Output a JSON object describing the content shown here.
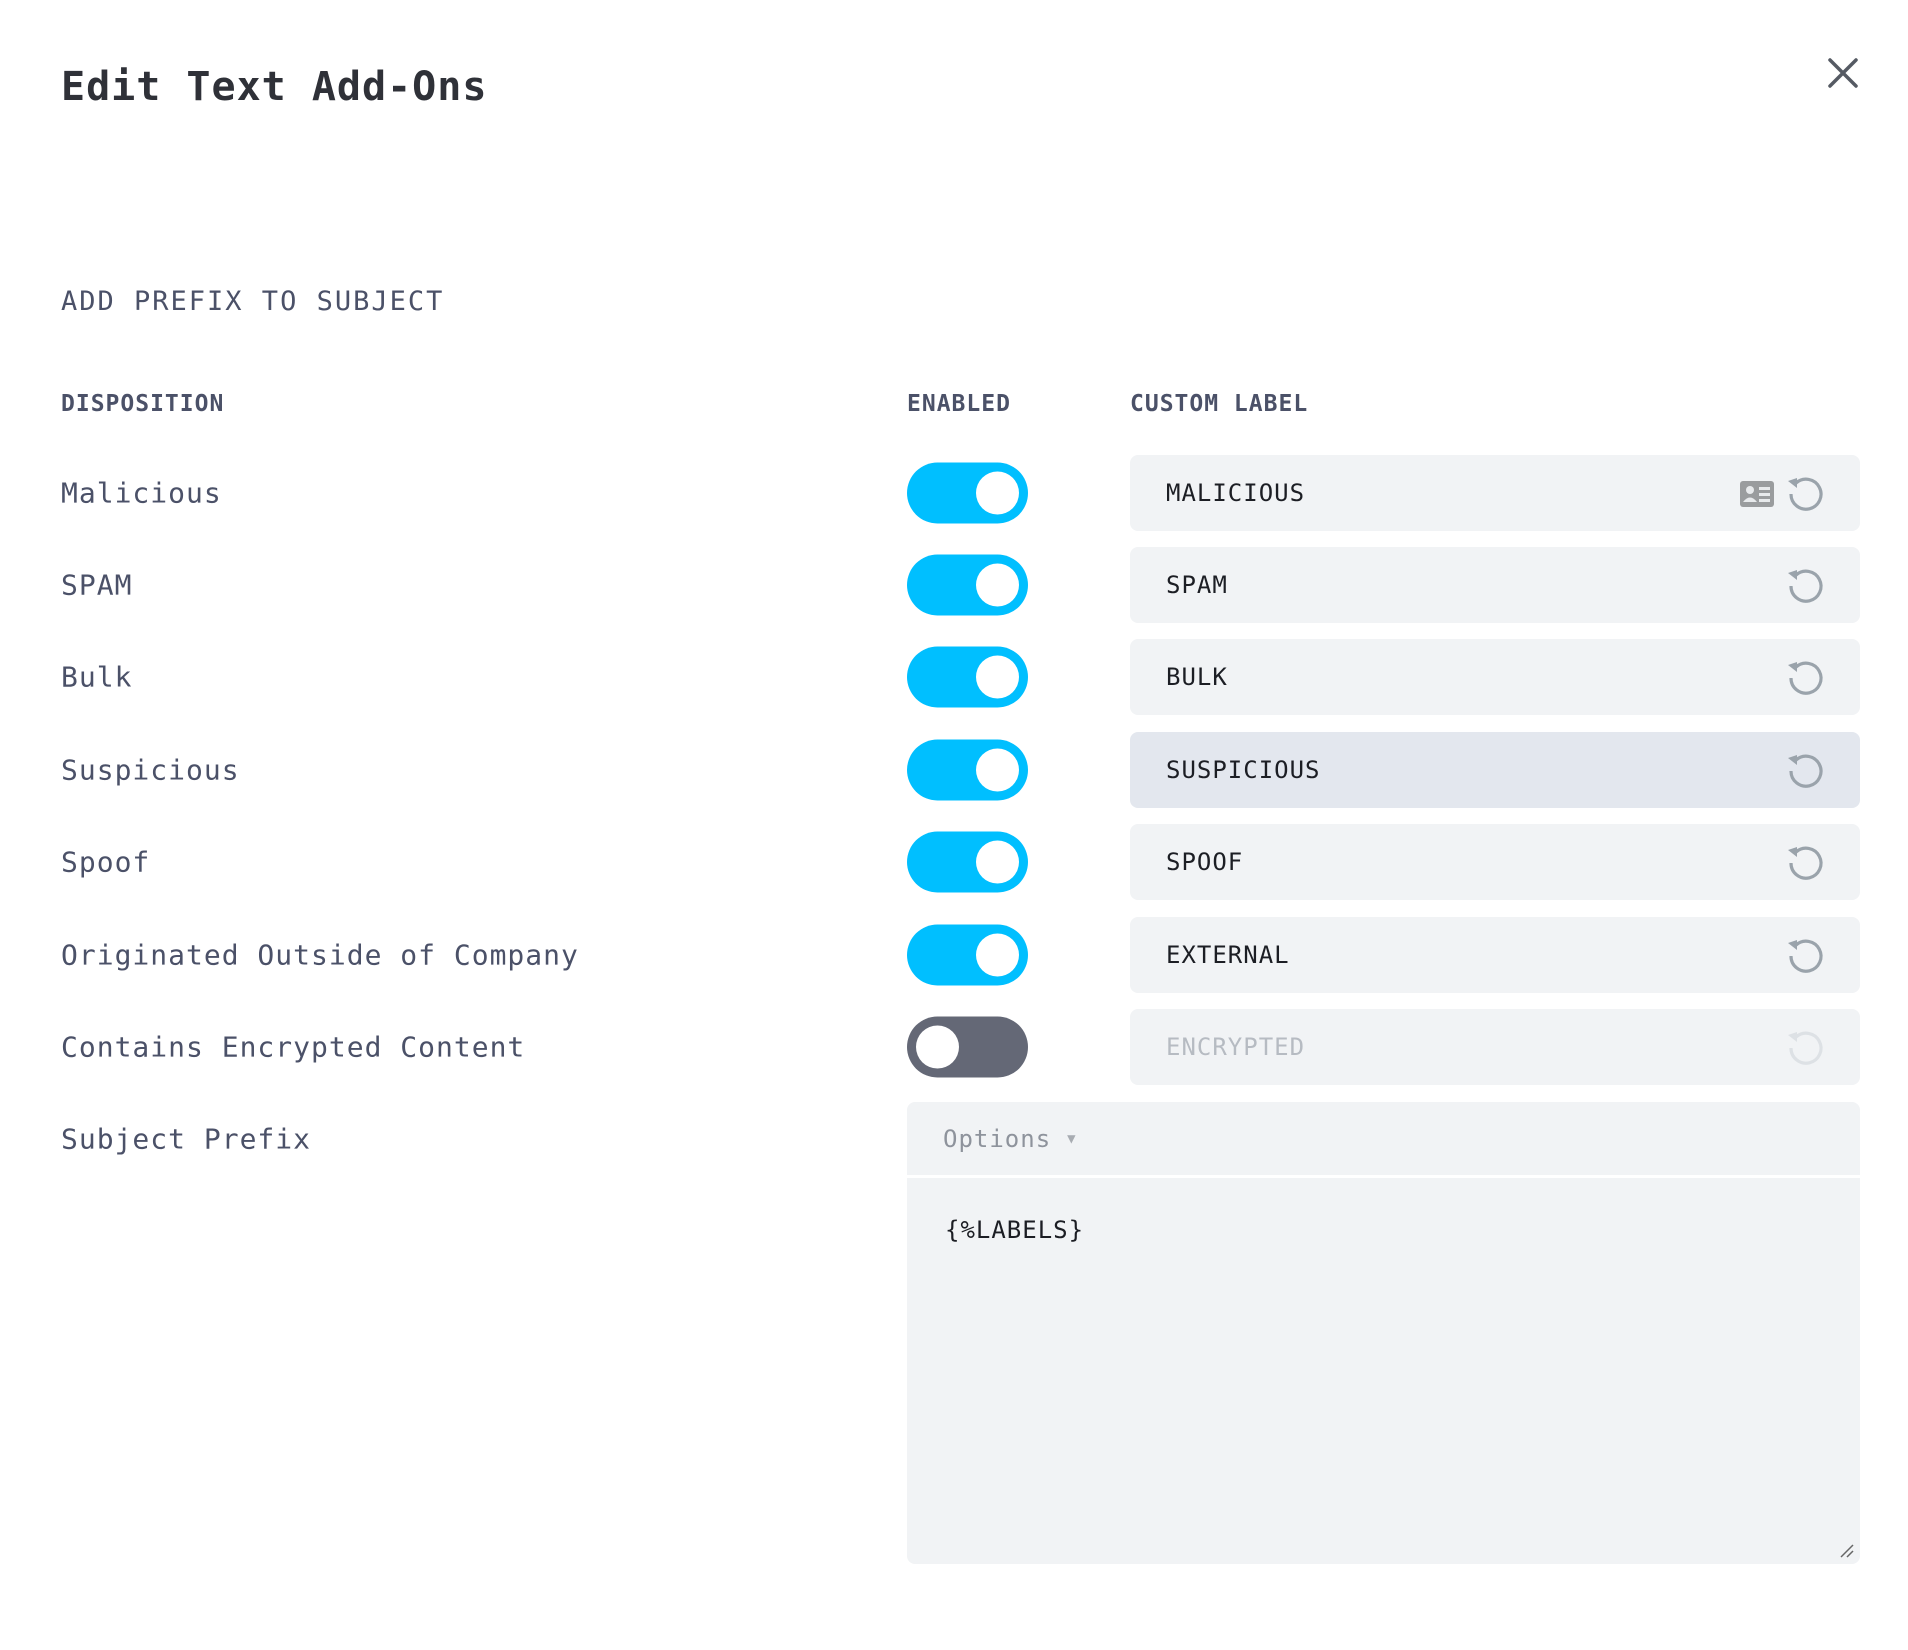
{
  "dialog": {
    "title": "Edit Text Add-Ons",
    "close_icon": "close-icon"
  },
  "section": {
    "heading": "ADD PREFIX TO SUBJECT"
  },
  "columns": {
    "disposition": "DISPOSITION",
    "enabled": "ENABLED",
    "custom_label": "CUSTOM LABEL"
  },
  "rows": [
    {
      "disposition": "Malicious",
      "enabled": true,
      "label": "MALICIOUS",
      "has_card_icon": true
    },
    {
      "disposition": "SPAM",
      "enabled": true,
      "label": "SPAM"
    },
    {
      "disposition": "Bulk",
      "enabled": true,
      "label": "BULK"
    },
    {
      "disposition": "Suspicious",
      "enabled": true,
      "label": "SUSPICIOUS",
      "highlighted": true
    },
    {
      "disposition": "Spoof",
      "enabled": true,
      "label": "SPOOF"
    },
    {
      "disposition": "Originated Outside of Company",
      "enabled": true,
      "label": "EXTERNAL"
    },
    {
      "disposition": "Contains Encrypted Content",
      "enabled": false,
      "label": "ENCRYPTED"
    }
  ],
  "subject_prefix": {
    "label": "Subject Prefix",
    "options_label": "Options",
    "value": "{%LABELS}"
  },
  "colors": {
    "toggle_on": "#00bfff",
    "toggle_off": "#646876"
  }
}
